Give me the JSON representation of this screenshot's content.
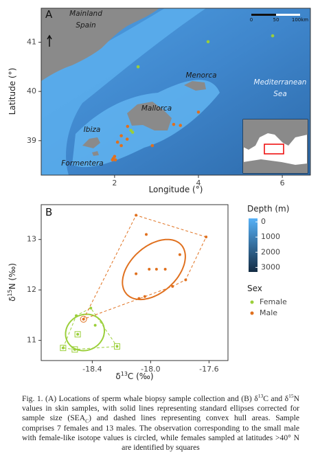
{
  "chart_data": [
    {
      "type": "map",
      "panel": "A",
      "x_label": "Longitude (°)",
      "y_label": "Latitude (°)",
      "xlim": [
        0.25,
        6.67
      ],
      "ylim": [
        38.3,
        41.69
      ],
      "xticks": [
        2,
        4,
        6
      ],
      "yticks": [
        39,
        40,
        41
      ],
      "places": [
        "Mainland",
        "Spain",
        "Menorca",
        "Mallorca",
        "Ibiza",
        "Formentera",
        "Mediterranean",
        "Sea"
      ],
      "scale_bar": [
        "0",
        "50",
        "100km"
      ],
      "series": [
        {
          "name": "Female",
          "color": "#9bcf3a",
          "x": [
            4.23,
            5.77,
            2.56,
            2.39,
            2.43
          ],
          "values": [
            41.01,
            41.13,
            40.5,
            39.21,
            39.17
          ]
        },
        {
          "name": "Male",
          "color": "#e0701e",
          "x": [
            4.0,
            3.41,
            3.57,
            2.31,
            2.16,
            2.3,
            2.07,
            2.16,
            2.9,
            2.0,
            1.97,
            2.02,
            1.95
          ],
          "values": [
            39.58,
            39.33,
            39.31,
            39.29,
            39.1,
            39.03,
            38.97,
            38.9,
            38.9,
            38.68,
            38.64,
            38.61,
            38.61
          ]
        }
      ]
    },
    {
      "type": "scatter",
      "panel": "B",
      "x_label": [
        "δ",
        "13",
        "C (‰)"
      ],
      "y_label": [
        "δ",
        "15",
        "N (‰)"
      ],
      "xlim": [
        -18.75,
        -17.47
      ],
      "ylim": [
        10.6,
        13.69
      ],
      "xticks": [
        -18.4,
        {
          "value": -18,
          "label": "-18.0"
        },
        -17.6
      ],
      "yticks": [
        11,
        12,
        13
      ],
      "legend_title": "Sex",
      "colorbar": {
        "title": "Depth (m)",
        "ticks": [
          0,
          1000,
          2000,
          3000
        ],
        "lim": [
          -230,
          3300
        ],
        "colors": [
          "#56b1f7",
          "#132b43"
        ]
      },
      "series": [
        {
          "name": "Female",
          "color": "#9bcf3a",
          "x": [
            -18.51,
            -18.41,
            -18.38,
            -18.5,
            -18.6,
            -18.52,
            -18.23
          ],
          "values": [
            11.49,
            11.64,
            11.3,
            11.12,
            10.85,
            10.82,
            10.88
          ],
          "square": [
            false,
            false,
            false,
            true,
            true,
            true,
            true
          ]
        },
        {
          "name": "Male",
          "color": "#e0701e",
          "x": [
            -18.1,
            -18.03,
            -17.62,
            -17.8,
            -18.01,
            -17.96,
            -18.1,
            -17.9,
            -17.76,
            -17.85,
            -18.08,
            -18.04,
            -18.46
          ],
          "values": [
            13.48,
            13.1,
            13.05,
            12.7,
            12.41,
            12.41,
            12.32,
            12.41,
            12.2,
            12.07,
            11.83,
            11.87,
            11.42
          ],
          "circled": [
            false,
            false,
            false,
            false,
            false,
            false,
            false,
            false,
            false,
            false,
            false,
            false,
            true
          ]
        }
      ]
    }
  ],
  "caption": [
    "Fig. 1. (A) Locations of sperm whale biopsy sample collection and (B) δ",
    "13",
    "C and δ",
    "15",
    "N values in skin samples, with solid lines representing standard ellipses corrected for sample size (SEA",
    "C",
    ") and dashed lines representing convex hull areas. Sample comprises 7 females and 13 males. The observation corresponding to the small male with female-like isotope values is circled, while females sampled at latitudes >40° N are identified by squares"
  ]
}
